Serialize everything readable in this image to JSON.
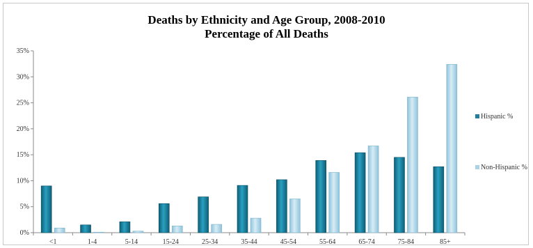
{
  "chart_data": {
    "type": "bar",
    "title": "Deaths by Ethnicity and Age Group, 2008-2010",
    "subtitle": "Percentage of All Deaths",
    "categories": [
      "<1",
      "1-4",
      "5-14",
      "15-24",
      "25-34",
      "35-44",
      "45-54",
      "55-64",
      "65-74",
      "75-84",
      "85+"
    ],
    "series": [
      {
        "name": "Hispanic %",
        "color": "#1f7f9c",
        "values": [
          9.0,
          1.5,
          2.1,
          5.6,
          6.9,
          9.1,
          10.2,
          13.9,
          15.4,
          14.5,
          12.7
        ]
      },
      {
        "name": "Non-Hispanic %",
        "color": "#a9d3e6",
        "values": [
          0.9,
          0.1,
          0.3,
          1.3,
          1.6,
          2.8,
          6.5,
          11.6,
          16.7,
          26.1,
          32.4
        ]
      }
    ],
    "ylim": [
      0,
      35
    ],
    "yticks": [
      "0%",
      "5%",
      "10%",
      "15%",
      "20%",
      "25%",
      "30%",
      "35%"
    ],
    "grid": false,
    "legend_position": "right"
  }
}
